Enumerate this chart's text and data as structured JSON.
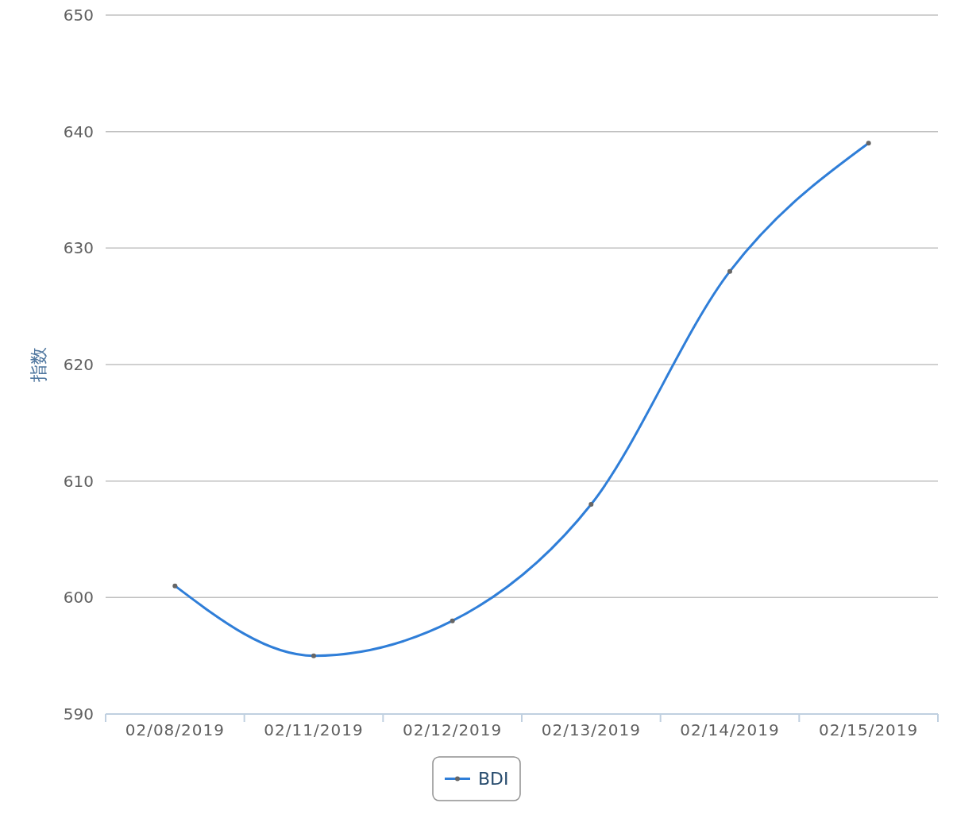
{
  "chart_data": {
    "type": "line",
    "ylabel": "指数",
    "categories": [
      "02/08/2019",
      "02/11/2019",
      "02/12/2019",
      "02/13/2019",
      "02/14/2019",
      "02/15/2019"
    ],
    "series": [
      {
        "name": "BDI",
        "color": "#2f7ed8",
        "values": [
          601,
          595,
          598,
          608,
          628,
          639
        ]
      }
    ],
    "ylim": [
      590,
      650
    ],
    "yticks": [
      590,
      600,
      610,
      620,
      630,
      640,
      650
    ],
    "grid": "y",
    "legend": "bottom",
    "marker": "circle"
  }
}
